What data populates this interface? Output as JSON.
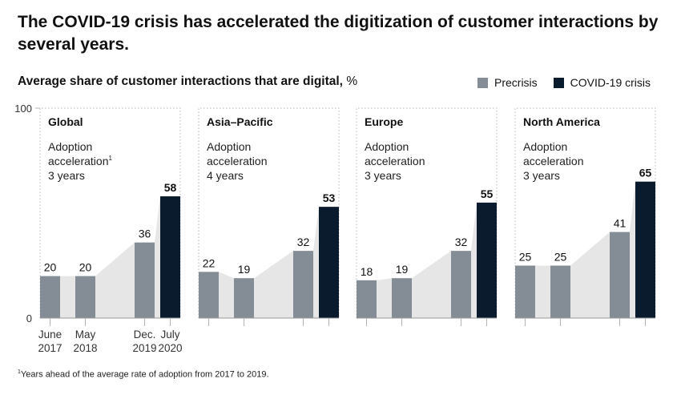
{
  "title": "The COVID-19 crisis has accelerated the digitization of customer interactions by several years.",
  "subtitle": "Average share of customer interactions that are digital,",
  "unit": "%",
  "legend": [
    {
      "name": "Precrisis",
      "color": "#848d95"
    },
    {
      "name": "COVID-19 crisis",
      "color": "#0a1b2e"
    }
  ],
  "footnote_mark": "1",
  "footnote": "Years ahead of the average rate of adoption from 2017 to 2019.",
  "chart_data": {
    "type": "bar",
    "ylim": [
      0,
      100
    ],
    "yticks": [
      "0",
      "100"
    ],
    "categories": [
      {
        "top": "June",
        "bottom": "2017"
      },
      {
        "top": "May",
        "bottom": "2018"
      },
      {
        "top": "Dec.",
        "bottom": "2019"
      },
      {
        "top": "July",
        "bottom": "2020"
      }
    ],
    "panels": [
      {
        "region": "Global",
        "note_line1": "Adoption",
        "note_line2": "acceleration",
        "note_mark": "1",
        "note_line3": "3 years",
        "values": [
          20,
          20,
          36,
          58
        ]
      },
      {
        "region": "Asia–Pacific",
        "note_line1": "Adoption",
        "note_line2": "acceleration",
        "note_mark": "",
        "note_line3": "4 years",
        "values": [
          22,
          19,
          32,
          53
        ]
      },
      {
        "region": "Europe",
        "note_line1": "Adoption",
        "note_line2": "acceleration",
        "note_line3": "3 years",
        "note_mark": "",
        "values": [
          18,
          19,
          32,
          55
        ]
      },
      {
        "region": "North America",
        "note_line1": "Adoption",
        "note_line2": "acceleration",
        "note_line3": "3 years",
        "note_mark": "",
        "values": [
          25,
          25,
          41,
          65
        ]
      }
    ],
    "colors": {
      "precrisis": "#848d95",
      "crisis": "#0a1b2e",
      "area": "#e6e6e6",
      "grid": "#b5b5b5"
    }
  }
}
